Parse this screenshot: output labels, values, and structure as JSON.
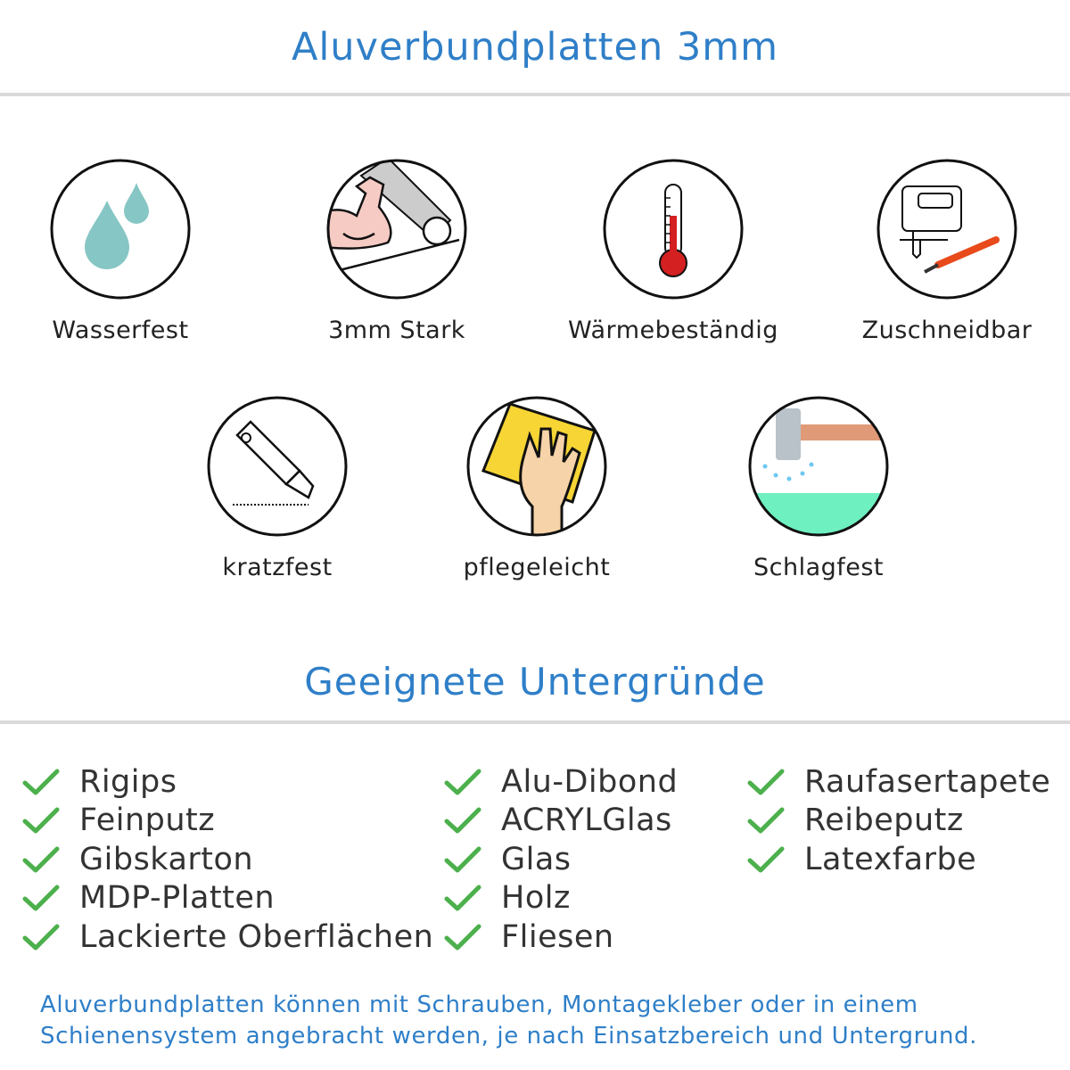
{
  "header": {
    "title": "Aluverbundplatten 3mm"
  },
  "features": [
    {
      "label": "Wasserfest",
      "icon": "water-drops-icon"
    },
    {
      "label": "3mm Stark",
      "icon": "muscle-arm-icon"
    },
    {
      "label": "Wärmebeständig",
      "icon": "thermometer-icon"
    },
    {
      "label": "Zuschneidbar",
      "icon": "jigsaw-cutter-icon"
    },
    {
      "label": "kratzfest",
      "icon": "box-cutter-icon"
    },
    {
      "label": "pflegeleicht",
      "icon": "hand-cloth-icon"
    },
    {
      "label": "Schlagfest",
      "icon": "hammer-icon"
    }
  ],
  "substrates": {
    "title": "Geeignete Untergründe",
    "columns": [
      [
        "Rigips",
        "Feinputz",
        "Gibskarton",
        "MDP-Platten",
        "Lackierte Oberflächen"
      ],
      [
        "Alu-Dibond",
        "ACRYLGlas",
        "Glas",
        "Holz",
        "Fliesen"
      ],
      [
        "Raufasertapete",
        "Reibeputz",
        "Latexfarbe"
      ]
    ]
  },
  "footer": {
    "line1": "Aluverbundplatten können mit Schrauben, Montagekleber oder in einem",
    "line2": "Schienensystem angebracht werden, je nach Einsatzbereich und Untergrund."
  },
  "colors": {
    "accent": "#2f7fc8",
    "check": "#4cb04c"
  }
}
